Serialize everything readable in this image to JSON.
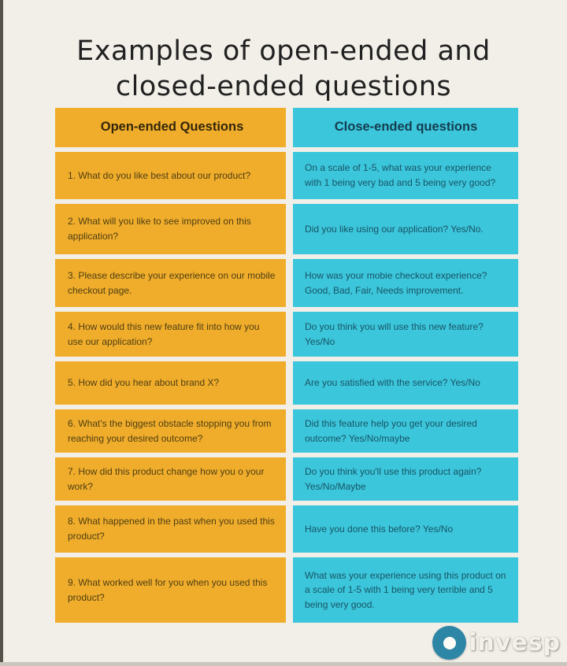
{
  "title": {
    "line1": "Examples of open-ended and",
    "line2": "closed-ended questions"
  },
  "table": {
    "headers": {
      "open": "Open-ended Questions",
      "closed": "Close-ended questions"
    },
    "rows": [
      {
        "open": "1. What do you like best about our product?",
        "closed": "On a scale of 1-5, what was your experience with 1 being very bad and 5 being very good?"
      },
      {
        "open": "2. What will you like to see improved on this application?",
        "closed": "Did you like using our application? Yes/No."
      },
      {
        "open": "3. Please describe your experience on our mobile checkout page.",
        "closed": "How was your mobie checkout experience? Good, Bad, Fair, Needs improvement."
      },
      {
        "open": "4. How would this new feature fit into how you use our application?",
        "closed": "Do you think you will use this new feature? Yes/No"
      },
      {
        "open": "5. How did you hear about brand X?",
        "closed": "Are you satisfied with the service? Yes/No"
      },
      {
        "open": "6. What's the biggest obstacle stopping you from reaching your desired outcome?",
        "closed": "Did this feature help you get your desired outcome? Yes/No/maybe"
      },
      {
        "open": "7. How did this product change how you o your work?",
        "closed": "Do you think you'll use this product again? Yes/No/Maybe"
      },
      {
        "open": "8. What happened in the past when you used this product?",
        "closed": "Have you done this before? Yes/No"
      },
      {
        "open": "9. What worked well for you when you used this product?",
        "closed": "What was your experience using this product on a scale of 1-5 with 1 being very terrible and 5 being very good."
      }
    ]
  },
  "logo": {
    "text": "invesp",
    "icon": "donut-ring-icon"
  },
  "colors": {
    "background": "#f2efe8",
    "open_column": "#f0ad2b",
    "closed_column": "#3cc6db",
    "open_text": "#4f3e13",
    "closed_text": "#175466",
    "logo_ring": "#2e86a6"
  }
}
